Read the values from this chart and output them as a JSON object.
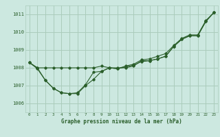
{
  "title": "Graphe pression niveau de la mer (hPa)",
  "bg_color": "#cce8e0",
  "grid_color": "#aaccbb",
  "line_color": "#2a5e2a",
  "xlim": [
    -0.5,
    23.5
  ],
  "ylim": [
    1005.5,
    1011.5
  ],
  "yticks": [
    1006,
    1007,
    1008,
    1009,
    1010,
    1011
  ],
  "xticks": [
    0,
    1,
    2,
    3,
    4,
    5,
    6,
    7,
    8,
    9,
    10,
    11,
    12,
    13,
    14,
    15,
    16,
    17,
    18,
    19,
    20,
    21,
    22,
    23
  ],
  "line1_x": [
    0,
    1,
    2,
    3,
    4,
    5,
    6,
    7,
    8,
    9,
    10,
    11,
    12,
    13,
    14,
    15,
    16,
    17,
    18,
    19,
    20,
    21,
    22,
    23
  ],
  "line1_y": [
    1008.3,
    1008.0,
    1008.0,
    1008.0,
    1008.0,
    1008.0,
    1008.0,
    1008.0,
    1008.0,
    1008.1,
    1008.0,
    1008.0,
    1008.0,
    1008.1,
    1008.4,
    1008.4,
    1008.5,
    1008.65,
    1009.2,
    1009.6,
    1009.8,
    1009.8,
    1010.6,
    1011.1
  ],
  "line2_x": [
    0,
    1,
    2,
    3,
    4,
    5,
    6,
    7,
    8,
    9,
    10,
    11,
    12,
    13,
    14,
    15,
    16,
    17,
    18,
    19,
    20,
    21,
    22,
    23
  ],
  "line2_y": [
    1008.3,
    1007.95,
    1007.3,
    1006.85,
    1006.6,
    1006.55,
    1006.55,
    1007.0,
    1007.35,
    1007.8,
    1008.0,
    1007.95,
    1008.05,
    1008.15,
    1008.35,
    1008.4,
    1008.5,
    1008.65,
    1009.2,
    1009.6,
    1009.8,
    1009.8,
    1010.6,
    1011.1
  ],
  "line3_x": [
    0,
    1,
    2,
    3,
    4,
    5,
    6,
    7,
    8,
    9,
    10,
    11,
    12,
    13,
    14,
    15,
    16,
    17,
    18,
    19,
    20,
    21,
    22,
    23
  ],
  "line3_y": [
    1008.3,
    1008.0,
    1007.3,
    1006.85,
    1006.6,
    1006.55,
    1006.6,
    1007.05,
    1007.75,
    1007.8,
    1008.0,
    1007.95,
    1008.1,
    1008.2,
    1008.45,
    1008.5,
    1008.65,
    1008.8,
    1009.25,
    1009.65,
    1009.85,
    1009.85,
    1010.65,
    1011.1
  ]
}
